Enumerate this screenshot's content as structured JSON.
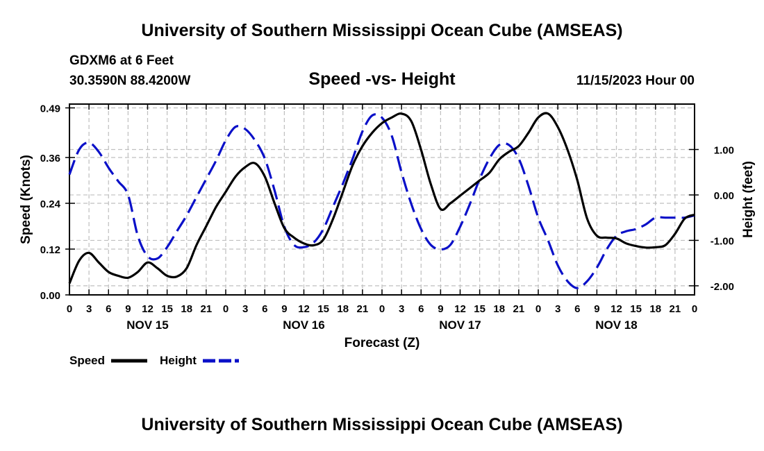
{
  "header": {
    "title": "University of Southern Mississippi Ocean Cube (AMSEAS)",
    "station": "GDXM6 at 6 Feet",
    "coordinates": "30.3590N  88.4200W",
    "subtitle": "Speed -vs- Height",
    "datetime": "11/15/2023 Hour 00"
  },
  "footer": {
    "title": "University of Southern Mississippi Ocean Cube (AMSEAS)"
  },
  "chart_data": {
    "type": "line",
    "title": "Speed -vs- Height",
    "xlabel": "Forecast (Z)",
    "ylabel": "Speed (Knots)",
    "y2label": "Height (feet)",
    "x_range_hours": [
      0,
      96
    ],
    "ylim": [
      0,
      0.5
    ],
    "y2lim": [
      -2.2,
      2.0
    ],
    "grid": true,
    "x_tick_hours": [
      0,
      3,
      6,
      9,
      12,
      15,
      18,
      21,
      24,
      27,
      30,
      33,
      36,
      39,
      42,
      45,
      48,
      51,
      54,
      57,
      60,
      63,
      66,
      69,
      72,
      75,
      78,
      81,
      84,
      87,
      90,
      93,
      96
    ],
    "x_tick_labels": [
      "0",
      "3",
      "6",
      "9",
      "12",
      "15",
      "18",
      "21",
      "0",
      "3",
      "6",
      "9",
      "12",
      "15",
      "18",
      "21",
      "0",
      "3",
      "6",
      "9",
      "12",
      "15",
      "18",
      "21",
      "0",
      "3",
      "6",
      "9",
      "12",
      "15",
      "18",
      "21",
      "0"
    ],
    "day_labels": [
      {
        "hour": 12,
        "label": "NOV 15"
      },
      {
        "hour": 36,
        "label": "NOV 16"
      },
      {
        "hour": 60,
        "label": "NOV 17"
      },
      {
        "hour": 84,
        "label": "NOV 18"
      }
    ],
    "y_ticks": [
      0.0,
      0.12,
      0.24,
      0.36,
      0.49
    ],
    "y_tick_labels": [
      "0.00",
      "0.12",
      "0.24",
      "0.36",
      "0.49"
    ],
    "y2_ticks": [
      1.0,
      0.0,
      -1.0,
      -2.0
    ],
    "y2_tick_labels": [
      "1.00",
      "0.00",
      "-1.00",
      "-2.00"
    ],
    "series": [
      {
        "name": "Speed",
        "color": "#000000",
        "dash": "solid",
        "axis": "left",
        "x": [
          0,
          1.5,
          3,
          4.5,
          6,
          7.5,
          9,
          10.5,
          12,
          13.5,
          15,
          16.5,
          18,
          19.5,
          21,
          22.5,
          24,
          25.5,
          27,
          28.5,
          30,
          31.5,
          33,
          34.5,
          36,
          37.5,
          39,
          40.5,
          42,
          43.5,
          45,
          46.5,
          48,
          49.5,
          51,
          52.5,
          54,
          55.5,
          57,
          58.5,
          60,
          61.5,
          63,
          64.5,
          66,
          67.5,
          69,
          70.5,
          72,
          73.5,
          75,
          76.5,
          78,
          79.5,
          81,
          82.5,
          84,
          85.5,
          87,
          88.5,
          90,
          91.5,
          93,
          94.5,
          96
        ],
        "values": [
          0.03,
          0.09,
          0.11,
          0.085,
          0.06,
          0.05,
          0.045,
          0.06,
          0.085,
          0.07,
          0.05,
          0.048,
          0.07,
          0.13,
          0.18,
          0.23,
          0.27,
          0.31,
          0.335,
          0.345,
          0.31,
          0.24,
          0.175,
          0.15,
          0.135,
          0.13,
          0.145,
          0.2,
          0.27,
          0.34,
          0.39,
          0.425,
          0.45,
          0.465,
          0.475,
          0.455,
          0.38,
          0.29,
          0.225,
          0.24,
          0.26,
          0.28,
          0.3,
          0.32,
          0.355,
          0.375,
          0.39,
          0.425,
          0.465,
          0.475,
          0.44,
          0.38,
          0.3,
          0.2,
          0.155,
          0.15,
          0.148,
          0.135,
          0.128,
          0.124,
          0.125,
          0.13,
          0.16,
          0.2,
          0.21
        ]
      },
      {
        "name": "Height",
        "color": "#0a10c8",
        "dash": "dashed",
        "axis": "right",
        "x": [
          0,
          1.5,
          3,
          4.5,
          6,
          7.5,
          9,
          10.5,
          12,
          13.5,
          15,
          16.5,
          18,
          19.5,
          21,
          22.5,
          24,
          25.5,
          27,
          28.5,
          30,
          31.5,
          33,
          34.5,
          36,
          37.5,
          39,
          40.5,
          42,
          43.5,
          45,
          46.5,
          48,
          49.5,
          51,
          52.5,
          54,
          55.5,
          57,
          58.5,
          60,
          61.5,
          63,
          64.5,
          66,
          67.5,
          69,
          70.5,
          72,
          73.5,
          75,
          76.5,
          78,
          79.5,
          81,
          82.5,
          84,
          85.5,
          87,
          88.5,
          90,
          91.5,
          93,
          94.5,
          96
        ],
        "values": [
          0.45,
          1.0,
          1.15,
          0.95,
          0.6,
          0.3,
          0.0,
          -0.9,
          -1.35,
          -1.4,
          -1.15,
          -0.8,
          -0.45,
          -0.05,
          0.35,
          0.75,
          1.2,
          1.5,
          1.45,
          1.2,
          0.8,
          0.1,
          -0.7,
          -1.1,
          -1.15,
          -1.05,
          -0.75,
          -0.25,
          0.25,
          0.8,
          1.4,
          1.75,
          1.7,
          1.3,
          0.5,
          -0.2,
          -0.75,
          -1.1,
          -1.2,
          -1.1,
          -0.7,
          -0.2,
          0.35,
          0.8,
          1.1,
          1.1,
          0.8,
          0.2,
          -0.5,
          -1.0,
          -1.55,
          -1.9,
          -2.05,
          -1.9,
          -1.6,
          -1.2,
          -0.9,
          -0.8,
          -0.75,
          -0.65,
          -0.5,
          -0.5,
          -0.5,
          -0.5,
          -0.45
        ]
      }
    ],
    "legend": {
      "position": "bottom-left",
      "items": [
        {
          "label": "Speed",
          "color": "#000000",
          "dash": "solid"
        },
        {
          "label": "Height",
          "color": "#0a10c8",
          "dash": "dashed"
        }
      ]
    }
  }
}
